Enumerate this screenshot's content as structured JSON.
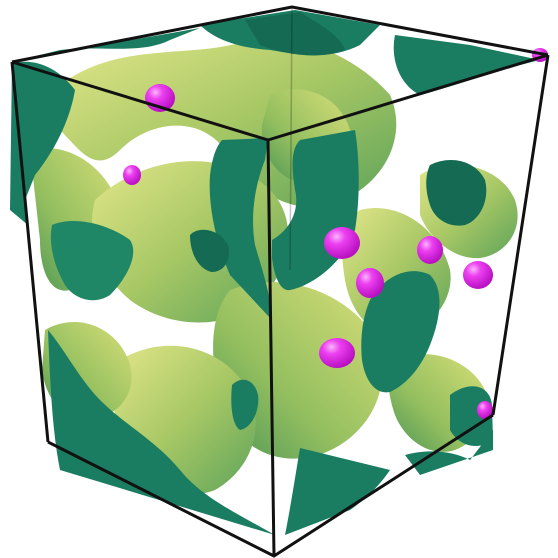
{
  "image": {
    "subject": "isosurface-cube-render",
    "colors": {
      "background": "#ffffff",
      "cap_face": "#1a7d62",
      "cap_face_dark": "#146a52",
      "surface_light": "#d9e07a",
      "surface_mid": "#9fc462",
      "surface_dark": "#4f9a57",
      "blob": "#e31fe6",
      "blob_highlight": "#f7a6f8",
      "edge": "#111111"
    }
  }
}
